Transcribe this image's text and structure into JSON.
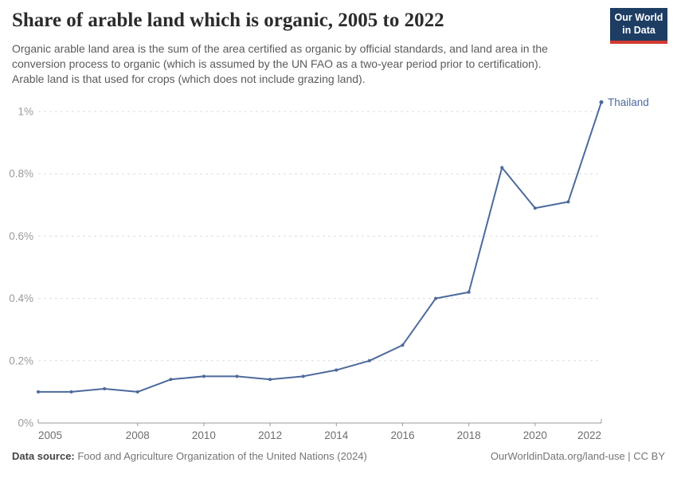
{
  "header": {
    "title": "Share of arable land which is organic, 2005 to 2022",
    "subtitle": "Organic arable land area is the sum of the area certified as organic by official standards, and land area in the\nconversion process to organic (which is assumed by the UN FAO as a two-year period prior to certification).\nArable land is that used for crops (which does not include grazing land).",
    "logo_text": "Our World\nin Data"
  },
  "footer": {
    "data_source_label": "Data source:",
    "data_source_value": " Food and Agriculture Organization of the United Nations (2024)",
    "attribution": "OurWorldinData.org/land-use | CC BY"
  },
  "colors": {
    "line": "#4C6A9C",
    "series_label": "#4C6A9C",
    "logo_bg": "#1d3d63",
    "logo_stripe": "#d13b32",
    "grid": "#dddddd",
    "axis": "#999999",
    "y_tick_label": "#9b9b9b",
    "x_tick_label": "#6e6e6e"
  },
  "chart_data": {
    "type": "line",
    "title": "Share of arable land which is organic, 2005 to 2022",
    "unit": "%",
    "grid": "horizontal dashed",
    "legend_position": "end-of-line label",
    "xlim": [
      2005,
      2022
    ],
    "ylim": [
      0,
      1.05
    ],
    "x_ticks": [
      2005,
      2008,
      2010,
      2012,
      2014,
      2016,
      2018,
      2020,
      2022
    ],
    "y_ticks": [
      {
        "value": 0,
        "label": "0%"
      },
      {
        "value": 0.2,
        "label": "0.2%"
      },
      {
        "value": 0.4,
        "label": "0.4%"
      },
      {
        "value": 0.6,
        "label": "0.6%"
      },
      {
        "value": 0.8,
        "label": "0.8%"
      },
      {
        "value": 1,
        "label": "1%"
      }
    ],
    "series": [
      {
        "name": "Thailand",
        "x": [
          2005,
          2006,
          2007,
          2008,
          2009,
          2010,
          2011,
          2012,
          2013,
          2014,
          2015,
          2016,
          2017,
          2018,
          2019,
          2020,
          2021,
          2022
        ],
        "values": [
          0.1,
          0.1,
          0.11,
          0.1,
          0.14,
          0.15,
          0.15,
          0.14,
          0.15,
          0.17,
          0.2,
          0.25,
          0.4,
          0.42,
          0.82,
          0.69,
          0.71,
          1.03
        ]
      }
    ]
  }
}
